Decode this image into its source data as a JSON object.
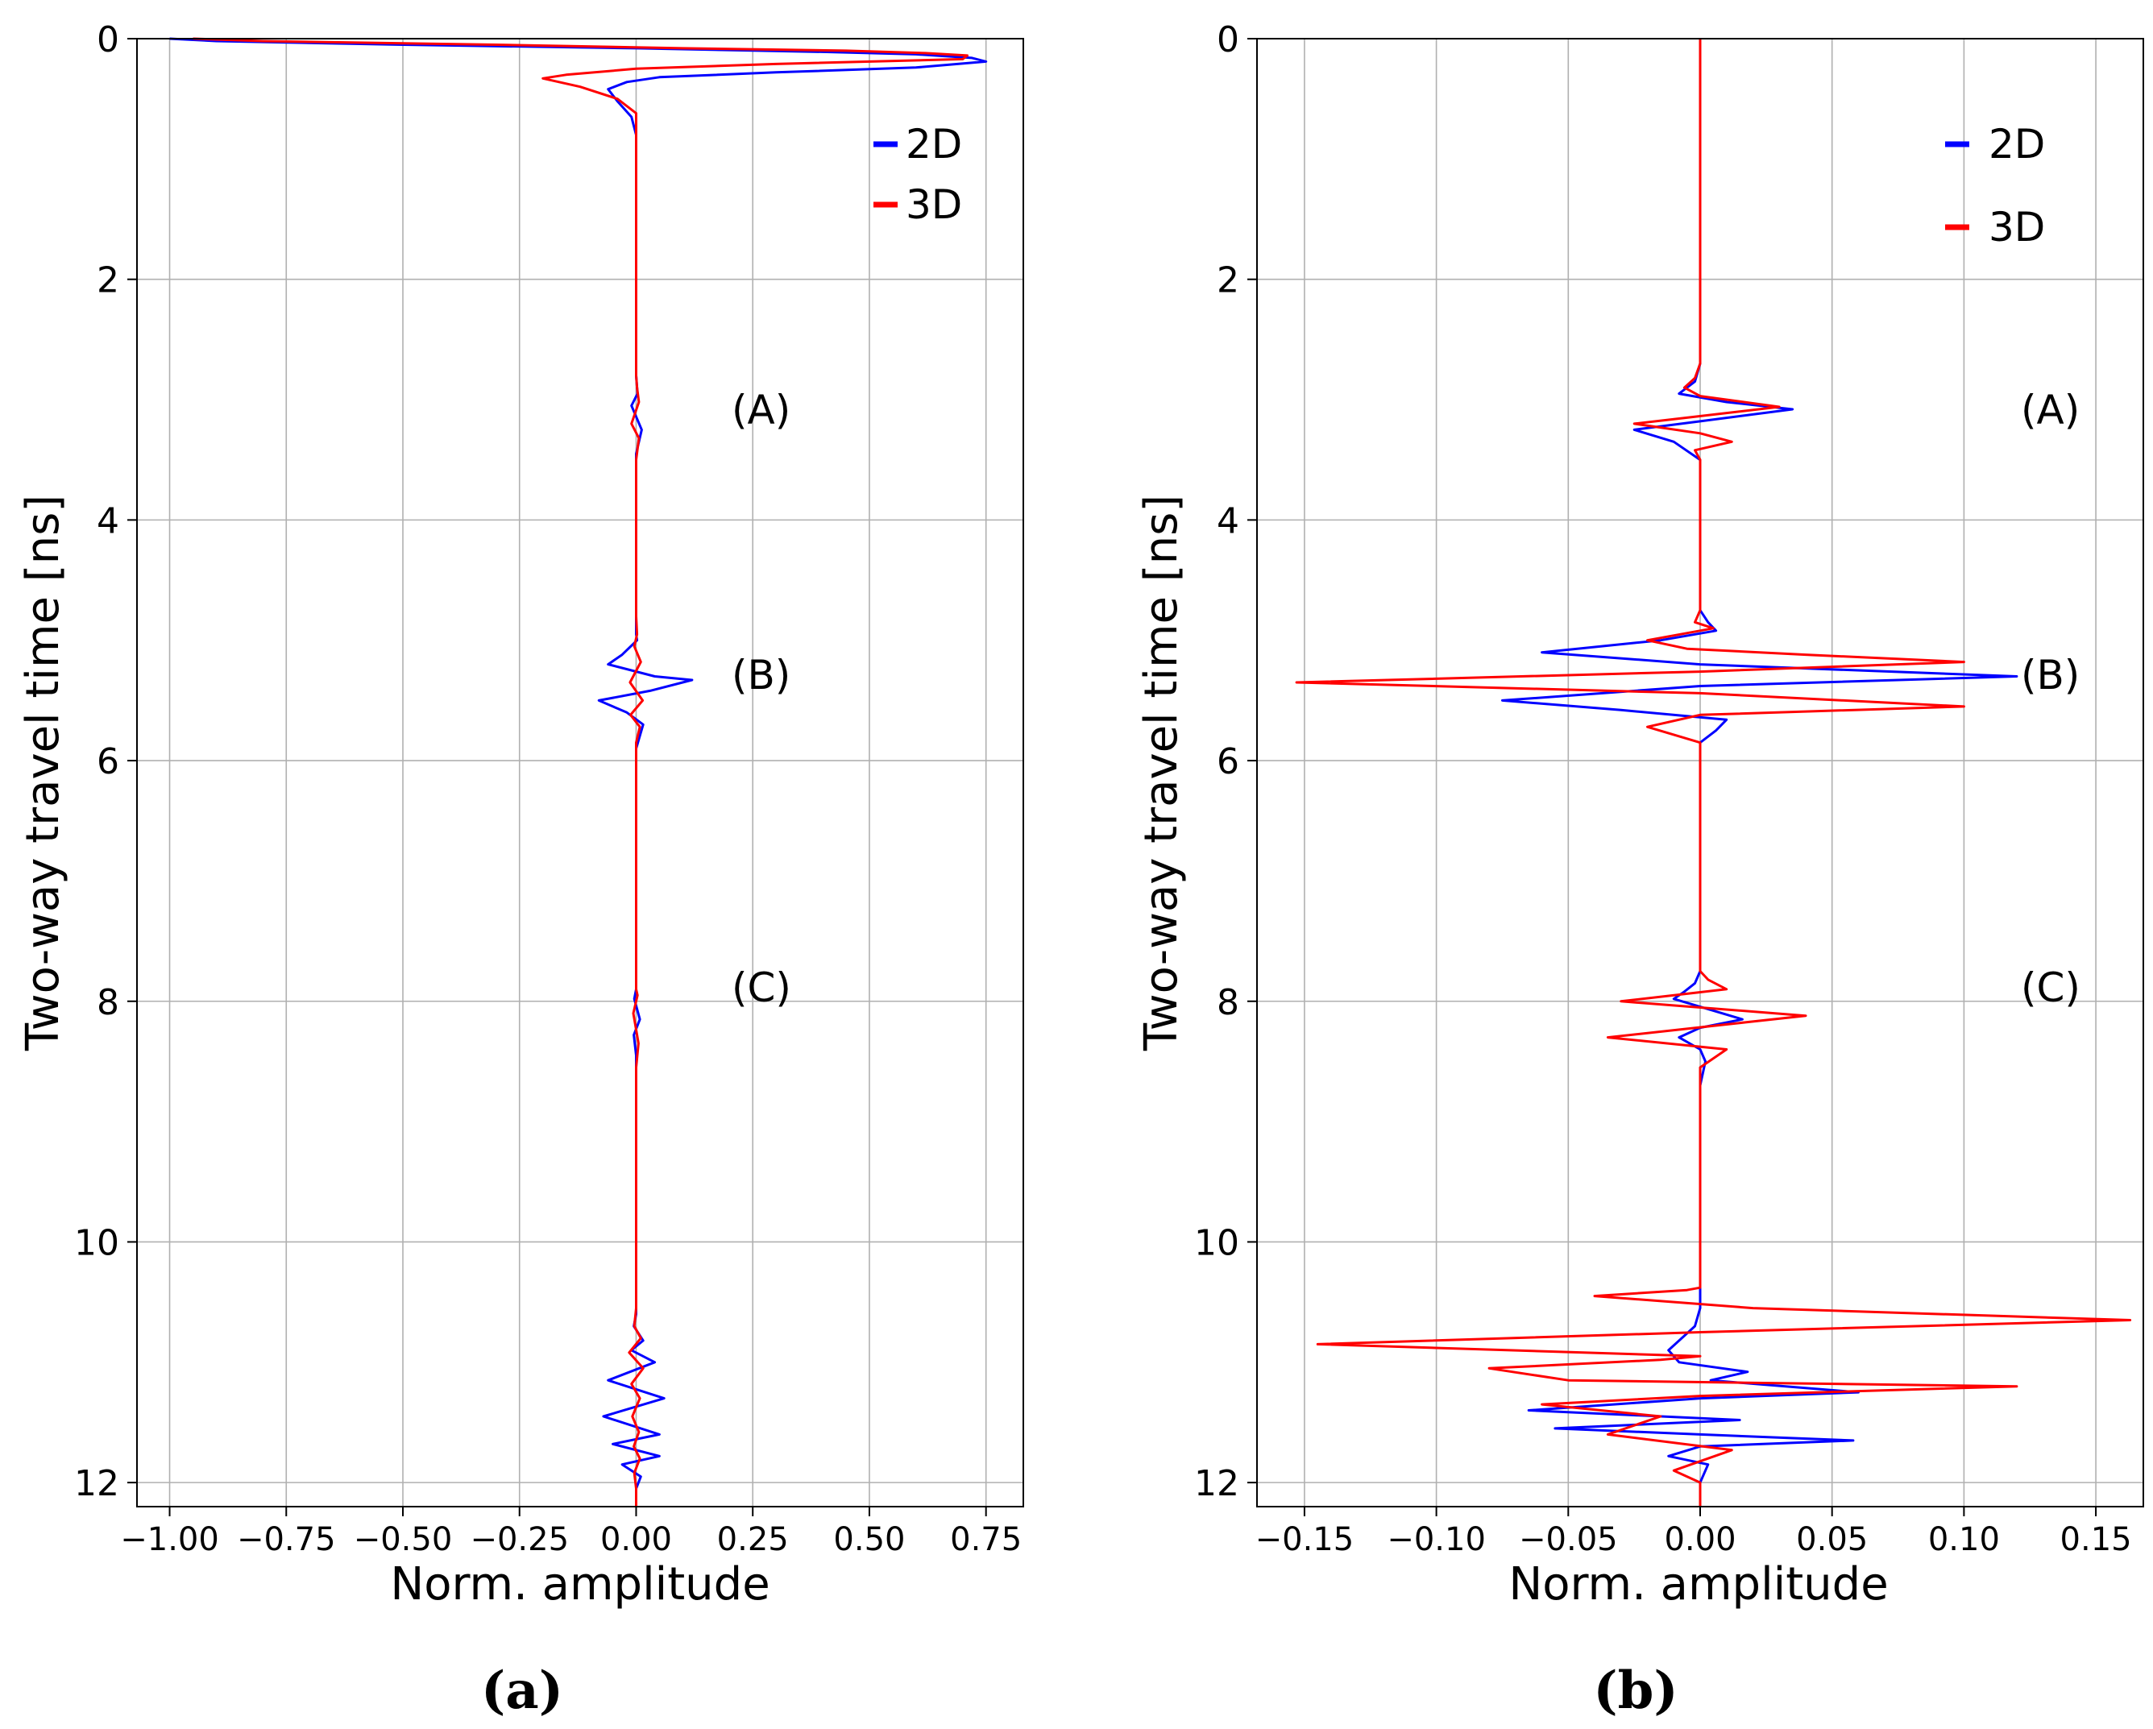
{
  "chart_data": [
    {
      "type": "line",
      "panel_label": "(a)",
      "title": "",
      "xlabel": "Norm. amplitude",
      "ylabel": "Two-way travel time [ns]",
      "xlim": [
        -1.07,
        0.83
      ],
      "ylim": [
        12.2,
        0
      ],
      "grid": true,
      "xticks": [
        -1.0,
        -0.75,
        -0.5,
        -0.25,
        0.0,
        0.25,
        0.5,
        0.75
      ],
      "xtick_labels": [
        "−1.00",
        "−0.75",
        "−0.50",
        "−0.25",
        "0.00",
        "0.25",
        "0.50",
        "0.75"
      ],
      "yticks": [
        0,
        2,
        4,
        6,
        8,
        10,
        12
      ],
      "ytick_labels": [
        "0",
        "2",
        "4",
        "6",
        "8",
        "10",
        "12"
      ],
      "legend": {
        "position": "upper-right",
        "entries": [
          "2D",
          "3D"
        ]
      },
      "annotations": [
        {
          "text": "(A)",
          "x": 0.28,
          "y": 3.1
        },
        {
          "text": "(B)",
          "x": 0.28,
          "y": 5.3
        },
        {
          "text": "(C)",
          "x": 0.28,
          "y": 7.9
        }
      ],
      "series": [
        {
          "name": "2D",
          "color": "#0000ff",
          "x": [
            -1.0,
            -0.9,
            -0.5,
            0.0,
            0.4,
            0.6,
            0.72,
            0.75,
            0.6,
            0.3,
            0.05,
            -0.02,
            -0.06,
            -0.04,
            -0.01,
            0.0,
            0.0,
            0.0,
            0.0,
            0.0,
            0.003,
            -0.01,
            0.012,
            0.0,
            0.0,
            0.0,
            0.0,
            0.0,
            0.002,
            -0.03,
            -0.06,
            0.04,
            0.12,
            0.03,
            -0.08,
            -0.02,
            0.015,
            0.0,
            0.0,
            0.0,
            0.0,
            -0.004,
            0.008,
            -0.005,
            0.0,
            0.0,
            0.0,
            0.0,
            0.0,
            0.0,
            0.0,
            0.0,
            -0.005,
            0.015,
            -0.01,
            0.04,
            -0.06,
            0.06,
            -0.07,
            0.05,
            -0.05,
            0.05,
            -0.03,
            0.01,
            0.0,
            0.0
          ],
          "y": [
            0.0,
            0.02,
            0.05,
            0.08,
            0.11,
            0.13,
            0.16,
            0.19,
            0.24,
            0.28,
            0.32,
            0.36,
            0.42,
            0.52,
            0.65,
            0.8,
            1.2,
            2.0,
            2.6,
            2.8,
            2.95,
            3.05,
            3.25,
            3.45,
            3.8,
            4.4,
            4.8,
            4.95,
            5.0,
            5.12,
            5.2,
            5.3,
            5.33,
            5.42,
            5.5,
            5.6,
            5.7,
            5.9,
            6.5,
            7.5,
            7.9,
            7.98,
            8.15,
            8.28,
            8.45,
            9.0,
            10.0,
            10.3,
            10.45,
            10.5,
            10.55,
            10.6,
            10.7,
            10.82,
            10.9,
            11.0,
            11.15,
            11.3,
            11.45,
            11.6,
            11.68,
            11.78,
            11.85,
            11.95,
            12.05,
            12.2
          ]
        },
        {
          "name": "3D",
          "color": "#ff0000",
          "x": [
            -0.95,
            -0.8,
            -0.3,
            0.1,
            0.45,
            0.62,
            0.71,
            0.7,
            0.3,
            0.0,
            -0.15,
            -0.2,
            -0.12,
            -0.04,
            0.0,
            0.0,
            0.0,
            0.0,
            0.0,
            0.0,
            0.002,
            0.006,
            -0.01,
            0.006,
            0.0,
            0.0,
            0.0,
            0.0,
            0.002,
            -0.004,
            0.01,
            -0.013,
            0.014,
            -0.012,
            0.008,
            0.0,
            0.0,
            0.0,
            0.0,
            0.0,
            0.0,
            0.003,
            -0.006,
            0.005,
            0.0,
            0.0,
            0.0,
            0.0,
            0.0,
            -0.004,
            0.01,
            -0.015,
            0.015,
            -0.01,
            0.008,
            -0.008,
            0.006,
            -0.005,
            0.008,
            -0.004,
            0.0,
            0.0
          ],
          "y": [
            0.0,
            0.02,
            0.05,
            0.08,
            0.1,
            0.12,
            0.14,
            0.17,
            0.21,
            0.25,
            0.3,
            0.33,
            0.4,
            0.5,
            0.62,
            0.8,
            1.2,
            2.0,
            2.6,
            2.8,
            2.9,
            3.02,
            3.2,
            3.32,
            3.5,
            3.8,
            4.4,
            4.8,
            4.95,
            5.05,
            5.18,
            5.35,
            5.5,
            5.62,
            5.72,
            5.85,
            6.0,
            6.5,
            7.5,
            7.8,
            7.9,
            7.95,
            8.1,
            8.35,
            8.55,
            9.0,
            10.0,
            10.3,
            10.55,
            10.7,
            10.8,
            10.92,
            11.05,
            11.18,
            11.3,
            11.45,
            11.58,
            11.7,
            11.8,
            11.92,
            12.05,
            12.2
          ]
        }
      ]
    },
    {
      "type": "line",
      "panel_label": "(b)",
      "title": "",
      "xlabel": "Norm. amplitude",
      "ylabel": "Two-way travel time [ns]",
      "xlim": [
        -0.168,
        0.168
      ],
      "ylim": [
        12.2,
        0
      ],
      "grid": true,
      "xticks": [
        -0.15,
        -0.1,
        -0.05,
        0.0,
        0.05,
        0.1,
        0.15
      ],
      "xtick_labels": [
        "−0.15",
        "−0.10",
        "−0.05",
        "0.00",
        "0.05",
        "0.10",
        "0.15"
      ],
      "yticks": [
        0,
        2,
        4,
        6,
        8,
        10,
        12
      ],
      "ytick_labels": [
        "0",
        "2",
        "4",
        "6",
        "8",
        "10",
        "12"
      ],
      "legend": {
        "position": "upper-right",
        "entries": [
          "2D",
          "3D"
        ]
      },
      "annotations": [
        {
          "text": "(A)",
          "x": 0.13,
          "y": 3.1
        },
        {
          "text": "(B)",
          "x": 0.13,
          "y": 5.3
        },
        {
          "text": "(C)",
          "x": 0.13,
          "y": 7.9
        }
      ],
      "series": [
        {
          "name": "2D",
          "color": "#0000ff",
          "x": [
            0.0,
            0.0,
            0.0,
            -0.002,
            -0.008,
            0.01,
            0.035,
            0.0,
            -0.025,
            -0.01,
            0.0,
            0.0,
            0.0,
            0.0,
            0.003,
            0.006,
            -0.015,
            -0.06,
            0.0,
            0.12,
            0.0,
            -0.075,
            -0.03,
            0.01,
            0.006,
            0.0,
            0.0,
            0.0,
            0.0,
            0.0,
            -0.002,
            -0.006,
            -0.01,
            0.016,
            0.0,
            -0.008,
            0.0,
            0.002,
            0.0,
            0.0,
            0.0,
            0.0,
            0.0,
            -0.002,
            -0.012,
            -0.008,
            0.018,
            0.004,
            0.06,
            0.0,
            -0.065,
            0.015,
            -0.055,
            0.0,
            0.058,
            0.0,
            -0.012,
            0.003,
            0.0,
            0.0
          ],
          "y": [
            0.0,
            2.0,
            2.7,
            2.85,
            2.95,
            3.02,
            3.08,
            3.18,
            3.25,
            3.35,
            3.5,
            4.0,
            4.5,
            4.75,
            4.85,
            4.92,
            5.0,
            5.1,
            5.2,
            5.3,
            5.38,
            5.5,
            5.58,
            5.66,
            5.75,
            5.85,
            6.0,
            7.0,
            7.5,
            7.75,
            7.85,
            7.92,
            7.98,
            8.15,
            8.22,
            8.3,
            8.4,
            8.5,
            8.7,
            9.0,
            10.0,
            10.3,
            10.55,
            10.7,
            10.9,
            11.0,
            11.08,
            11.15,
            11.25,
            11.3,
            11.4,
            11.48,
            11.55,
            11.6,
            11.65,
            11.7,
            11.78,
            11.85,
            12.0,
            12.2
          ]
        },
        {
          "name": "3D",
          "color": "#ff0000",
          "x": [
            0.0,
            0.0,
            0.0,
            -0.002,
            -0.006,
            0.0,
            0.03,
            -0.005,
            -0.025,
            0.0,
            0.012,
            -0.002,
            0.0,
            0.0,
            0.0,
            0.0,
            -0.002,
            0.005,
            -0.02,
            -0.005,
            0.04,
            0.1,
            0.0,
            -0.153,
            0.0,
            0.1,
            0.0,
            -0.02,
            0.0,
            0.0,
            0.0,
            0.0,
            0.0,
            0.0,
            0.003,
            0.01,
            -0.03,
            0.04,
            -0.035,
            0.01,
            0.0,
            0.0,
            0.0,
            0.0,
            0.0,
            0.0,
            -0.005,
            -0.04,
            0.02,
            0.163,
            0.0,
            -0.145,
            0.0,
            -0.015,
            -0.08,
            -0.05,
            0.12,
            0.0,
            -0.06,
            -0.015,
            -0.035,
            0.012,
            -0.01,
            0.0,
            0.0
          ],
          "y": [
            0.0,
            2.0,
            2.7,
            2.82,
            2.9,
            2.97,
            3.06,
            3.15,
            3.2,
            3.28,
            3.35,
            3.42,
            3.5,
            4.0,
            4.5,
            4.75,
            4.85,
            4.9,
            5.0,
            5.07,
            5.12,
            5.18,
            5.26,
            5.35,
            5.44,
            5.55,
            5.62,
            5.72,
            5.85,
            6.0,
            7.0,
            7.5,
            7.7,
            7.75,
            7.82,
            7.9,
            8.0,
            8.12,
            8.3,
            8.4,
            8.55,
            9.0,
            10.0,
            10.2,
            10.3,
            10.38,
            10.4,
            10.45,
            10.55,
            10.65,
            10.75,
            10.85,
            10.95,
            10.98,
            11.05,
            11.15,
            11.2,
            11.28,
            11.35,
            11.45,
            11.6,
            11.73,
            11.9,
            12.0,
            12.2
          ]
        }
      ]
    }
  ]
}
